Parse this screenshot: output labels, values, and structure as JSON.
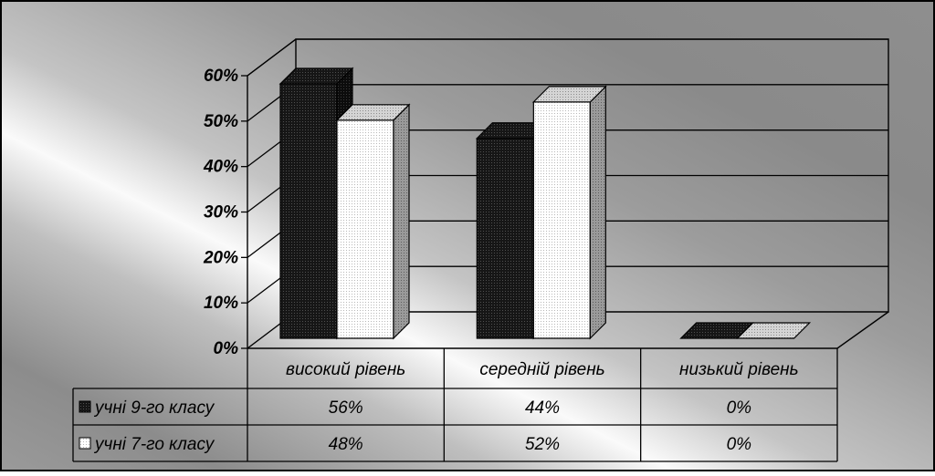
{
  "chart_data": {
    "type": "bar",
    "title": "",
    "xlabel": "",
    "ylabel": "",
    "ylim": [
      0,
      60
    ],
    "y_ticks": [
      "0%",
      "10%",
      "20%",
      "30%",
      "40%",
      "50%",
      "60%"
    ],
    "categories": [
      "високий рівень",
      "середній рівень",
      "низький рівень"
    ],
    "series": [
      {
        "name": "учні 9-го класу",
        "values": [
          56,
          44,
          0
        ],
        "labels": [
          "56%",
          "44%",
          "0%"
        ],
        "color": "#111111"
      },
      {
        "name": "учні 7-го класу",
        "values": [
          48,
          52,
          0
        ],
        "labels": [
          "48%",
          "52%",
          "0%"
        ],
        "color": "#ffffff"
      }
    ],
    "grid": true,
    "data_table": true,
    "background": "gray-gradient"
  }
}
